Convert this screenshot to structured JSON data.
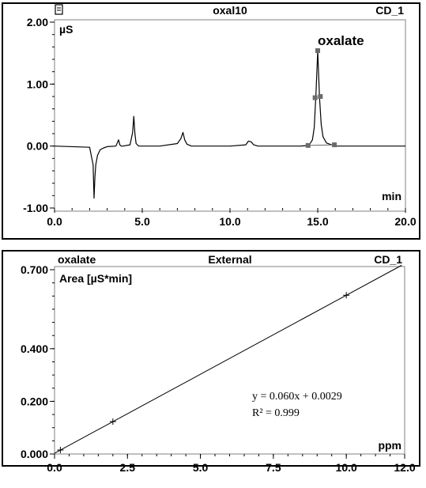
{
  "chart_data": [
    {
      "type": "line",
      "title_left": "",
      "title_center": "oxal10",
      "title_right": "CD_1",
      "ylabel": "µS",
      "xlabel": "min",
      "xlim": [
        0,
        20
      ],
      "ylim": [
        -1,
        2
      ],
      "xticks": [
        "0.0",
        "5.0",
        "10.0",
        "15.0",
        "20.0"
      ],
      "yticks": [
        "-1.00",
        "0.00",
        "1.00",
        "2.00"
      ],
      "peak_label": "oxalate",
      "series": [
        {
          "x": [
            0.0,
            2.0,
            2.2,
            2.25,
            2.3,
            2.35,
            2.45,
            2.6,
            2.8,
            3.0,
            3.5,
            3.65,
            3.72,
            3.8,
            3.9,
            4.3,
            4.45,
            4.52,
            4.58,
            4.65,
            4.8,
            5.0,
            6.0,
            7.0,
            7.2,
            7.32,
            7.42,
            7.55,
            7.8,
            8.0,
            9.0,
            10.0,
            10.9,
            11.05,
            11.2,
            11.35,
            11.6,
            12.0,
            13.0,
            14.0,
            14.5,
            14.7,
            14.8,
            14.9,
            15.0,
            15.1,
            15.2,
            15.3,
            15.5,
            16.0,
            17.0,
            18.0,
            19.0,
            20.0
          ],
          "y": [
            0.0,
            -0.02,
            -0.3,
            -0.84,
            -0.5,
            -0.3,
            -0.15,
            -0.06,
            -0.03,
            -0.01,
            0.0,
            0.1,
            0.02,
            0.0,
            0.0,
            0.02,
            0.22,
            0.48,
            0.2,
            0.04,
            0.0,
            0.0,
            0.0,
            0.04,
            0.12,
            0.22,
            0.1,
            0.03,
            0.0,
            0.0,
            0.0,
            0.0,
            0.02,
            0.08,
            0.07,
            0.02,
            0.0,
            0.0,
            0.0,
            0.0,
            0.01,
            0.1,
            0.3,
            0.85,
            1.54,
            0.8,
            0.35,
            0.15,
            0.05,
            0.0,
            0.0,
            0.0,
            0.0,
            0.0
          ]
        }
      ],
      "markers": [
        {
          "x": 14.45,
          "y": 0.01
        },
        {
          "x": 14.85,
          "y": 0.78
        },
        {
          "x": 15.0,
          "y": 1.54
        },
        {
          "x": 15.15,
          "y": 0.8
        },
        {
          "x": 15.95,
          "y": 0.02
        }
      ]
    },
    {
      "type": "line",
      "title_left": "oxalate",
      "title_center": "External",
      "title_right": "CD_1",
      "ylabel": "Area  [µS*min]",
      "xlabel": "ppm",
      "xlim": [
        0,
        12
      ],
      "ylim": [
        0,
        0.7
      ],
      "xticks": [
        "0.0",
        "2.5",
        "5.0",
        "7.5",
        "10.0",
        "12.0"
      ],
      "yticks": [
        "0.000",
        "0.200",
        "0.400",
        "0.700"
      ],
      "equation": "y = 0.060x + 0.0029",
      "r_squared": "R² = 0.999",
      "line": {
        "slope": 0.06,
        "intercept": 0.0029,
        "x": [
          0,
          11.9
        ]
      },
      "points": [
        {
          "x": 0.2,
          "y": 0.015
        },
        {
          "x": 2.0,
          "y": 0.123
        },
        {
          "x": 10.0,
          "y": 0.603
        }
      ]
    }
  ]
}
